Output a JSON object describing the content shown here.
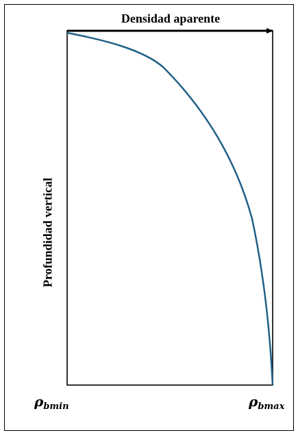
{
  "diagram": {
    "title": "Densidad aparente",
    "ylabel": "Profundidad vertical",
    "x_min_label": {
      "symbol": "ρ",
      "subscript": "bmin"
    },
    "x_max_label": {
      "symbol": "ρ",
      "subscript": "bmax"
    },
    "colors": {
      "curve": "#1f5f86",
      "axes": "#000000"
    }
  }
}
